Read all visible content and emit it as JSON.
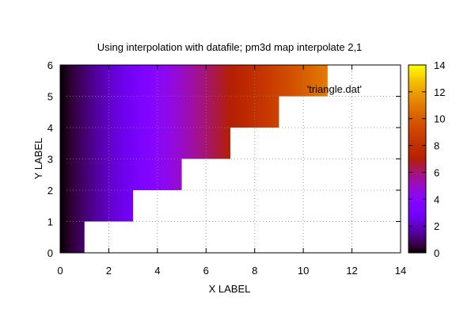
{
  "chart_data": {
    "type": "heatmap",
    "title": "Using interpolation with datafile; pm3d map interpolate 2,1",
    "xlabel": "X LABEL",
    "ylabel": "Y LABEL",
    "xlim": [
      0,
      14
    ],
    "ylim": [
      0,
      6
    ],
    "xticks": [
      "0",
      "2",
      "4",
      "6",
      "8",
      "10",
      "12",
      "14"
    ],
    "yticks": [
      "0",
      "1",
      "2",
      "3",
      "4",
      "5",
      "6"
    ],
    "grid": true,
    "palette": "gnuplot default (black-blue-purple-red-orange-yellow)",
    "colorbar": {
      "range": [
        0,
        14
      ],
      "ticks": [
        "0",
        "2",
        "4",
        "6",
        "8",
        "10",
        "12",
        "14"
      ]
    },
    "series": [
      {
        "name": "'triangle.dat'",
        "note_key": "legend",
        "steps": [
          {
            "y_range": [
              0,
              1
            ],
            "x_range": [
              0,
              1
            ]
          },
          {
            "y_range": [
              1,
              2
            ],
            "x_range": [
              0,
              3
            ]
          },
          {
            "y_range": [
              2,
              3
            ],
            "x_range": [
              0,
              5
            ]
          },
          {
            "y_range": [
              3,
              4
            ],
            "x_range": [
              0,
              7
            ]
          },
          {
            "y_range": [
              4,
              5
            ],
            "x_range": [
              0,
              9
            ]
          },
          {
            "y_range": [
              5,
              6
            ],
            "x_range": [
              0,
              11
            ]
          }
        ],
        "color_value": "z equals x"
      }
    ],
    "legend_position": "top-right"
  }
}
